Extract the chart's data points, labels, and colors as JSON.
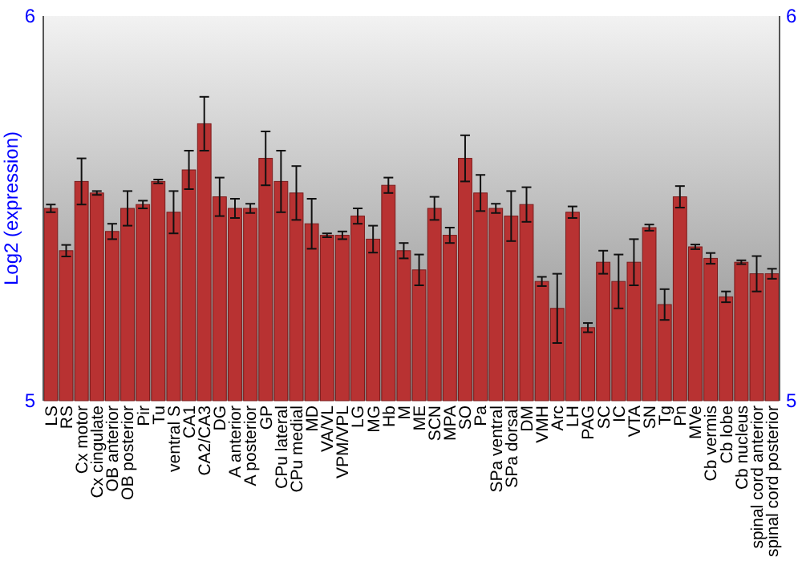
{
  "chart_data": {
    "type": "bar",
    "ylabel": "Log2 (expression)",
    "categories": [
      "LS",
      "RS",
      "Cx motor",
      "Cx cingulate",
      "OB anterior",
      "OB posterior",
      "Pir",
      "Tu",
      "ventral S",
      "CA1",
      "CA2/CA3",
      "DG",
      "A anterior",
      "A posterior",
      "GP",
      "CPu lateral",
      "CPu medial",
      "MD",
      "VA/VL",
      "VPM/VPL",
      "LG",
      "MG",
      "Hb",
      "M",
      "ME",
      "SCN",
      "MPA",
      "SO",
      "Pa",
      "SPa ventral",
      "SPa dorsal",
      "DM",
      "VMH",
      "Arc",
      "LH",
      "PAG",
      "SC",
      "IC",
      "VTA",
      "SN",
      "Tg",
      "Pn",
      "MVe",
      "Cb vermis",
      "Cb lobe",
      "Cb nucleus",
      "spinal cord anterior",
      "spinal cord posterior"
    ],
    "values": [
      5.5,
      5.39,
      5.57,
      5.54,
      5.44,
      5.5,
      5.51,
      5.57,
      5.49,
      5.6,
      5.72,
      5.53,
      5.5,
      5.5,
      5.63,
      5.57,
      5.54,
      5.46,
      5.43,
      5.43,
      5.48,
      5.42,
      5.56,
      5.39,
      5.34,
      5.5,
      5.43,
      5.63,
      5.54,
      5.5,
      5.48,
      5.51,
      5.31,
      5.24,
      5.49,
      5.19,
      5.36,
      5.31,
      5.36,
      5.45,
      5.25,
      5.53,
      5.4,
      5.37,
      5.27,
      5.36,
      5.33,
      5.33
    ],
    "errors": [
      0.01,
      0.015,
      0.06,
      0.005,
      0.02,
      0.045,
      0.01,
      0.005,
      0.055,
      0.05,
      0.07,
      0.05,
      0.025,
      0.012,
      0.07,
      0.08,
      0.07,
      0.065,
      0.005,
      0.01,
      0.02,
      0.035,
      0.02,
      0.02,
      0.04,
      0.03,
      0.02,
      0.06,
      0.047,
      0.012,
      0.065,
      0.045,
      0.012,
      0.09,
      0.015,
      0.012,
      0.03,
      0.07,
      0.06,
      0.008,
      0.04,
      0.028,
      0.006,
      0.014,
      0.014,
      0.005,
      0.046,
      0.013
    ],
    "color": "#b83232",
    "ylim": [
      5,
      6
    ],
    "yticks": [
      5,
      6
    ],
    "y2lim": [
      5,
      6
    ],
    "y2ticks": [
      5,
      6
    ],
    "grid": false
  }
}
